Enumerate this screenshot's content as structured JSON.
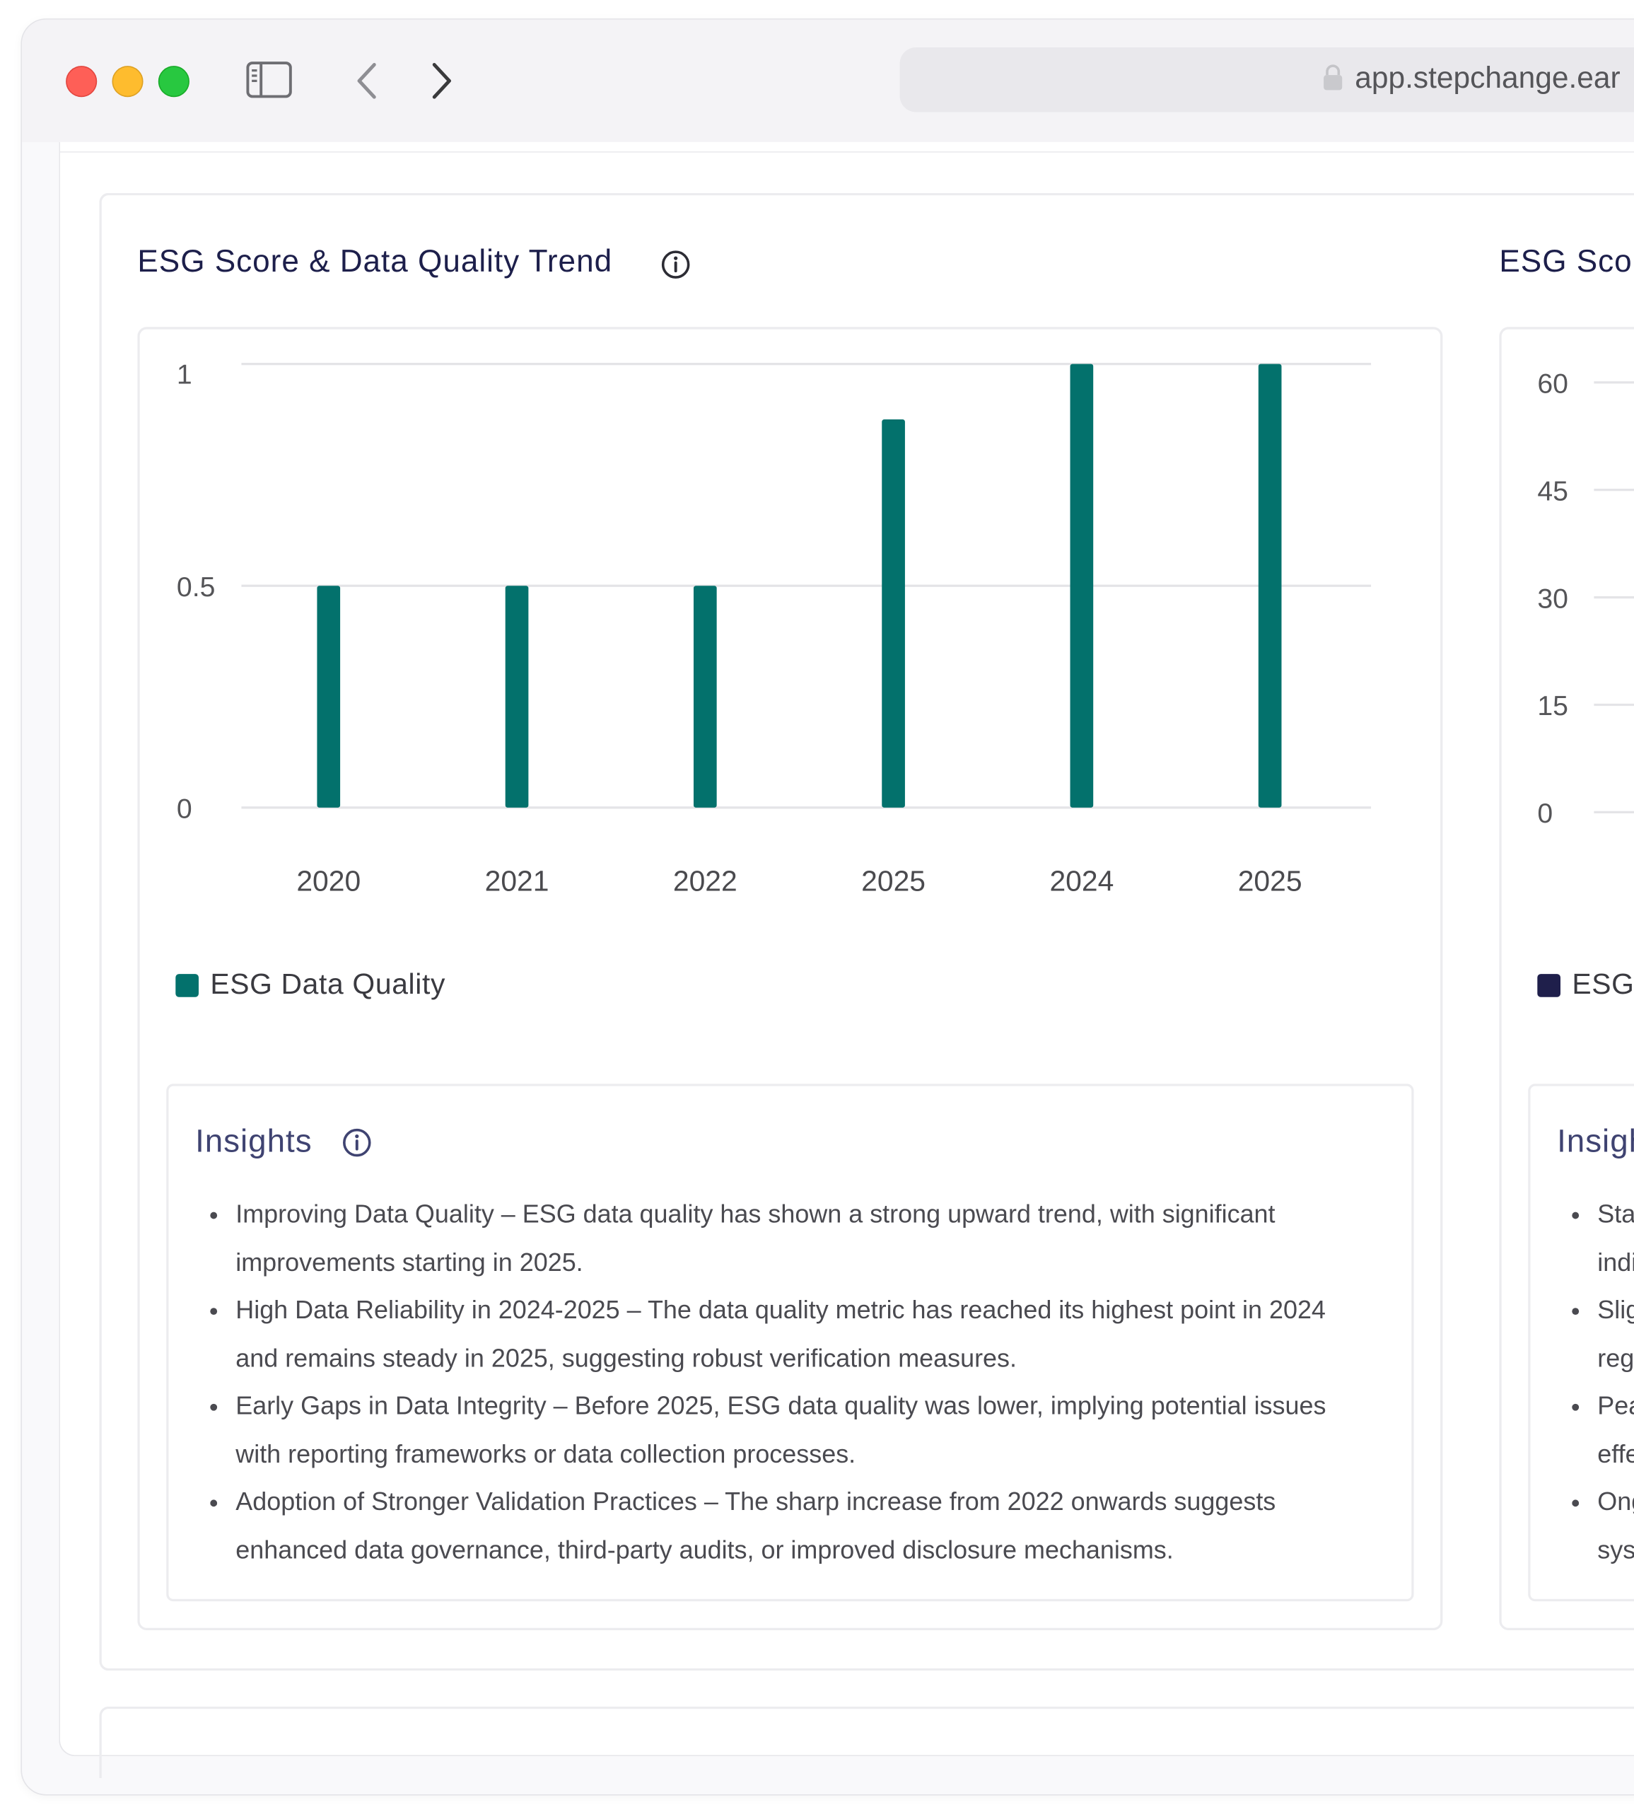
{
  "browser": {
    "url": "app.stepchange.ear"
  },
  "left_panel": {
    "title": "ESG Score & Data Quality Trend",
    "chart_data": {
      "type": "bar",
      "categories": [
        "2020",
        "2021",
        "2022",
        "2025",
        "2024",
        "2025"
      ],
      "series": [
        {
          "name": "ESG Data Quality",
          "values": [
            0.5,
            0.5,
            0.5,
            0.875,
            1,
            1
          ],
          "color": "#03716c"
        }
      ],
      "y_ticks": [
        "0",
        "0.5",
        "1"
      ],
      "ylim": [
        0,
        1
      ],
      "grid": true,
      "legend": "bottom-left"
    },
    "legend_label": "ESG Data Quality",
    "insights": {
      "title": "Insights",
      "items": [
        "Improving Data Quality – ESG data quality has shown a strong upward trend, with significant improvements starting in 2025.",
        "High Data Reliability in 2024-2025 – The data quality metric has reached its highest point in 2024 and remains steady in 2025, suggesting robust verification measures.",
        "Early Gaps in Data Integrity – Before 2025, ESG data quality was lower, implying potential issues with reporting frameworks or data collection processes.",
        "Adoption of Stronger Validation Practices – The sharp increase from 2022 onwards suggests enhanced data governance, third-party audits, or improved disclosure mechanisms."
      ]
    }
  },
  "right_panel": {
    "title": "ESG Sco",
    "y_ticks": [
      "60",
      "45",
      "30",
      "15",
      "0"
    ],
    "legend_label": "ESG",
    "legend_color": "#1f1f4b",
    "insights": {
      "title": "Insigh",
      "items": [
        {
          "line1": "Sta",
          "line2": "indi"
        },
        {
          "line1": "Slig",
          "line2": "reg"
        },
        {
          "line1": "Pea",
          "line2": "effe"
        },
        {
          "line1": "Ong",
          "line2": "sys"
        }
      ]
    }
  }
}
